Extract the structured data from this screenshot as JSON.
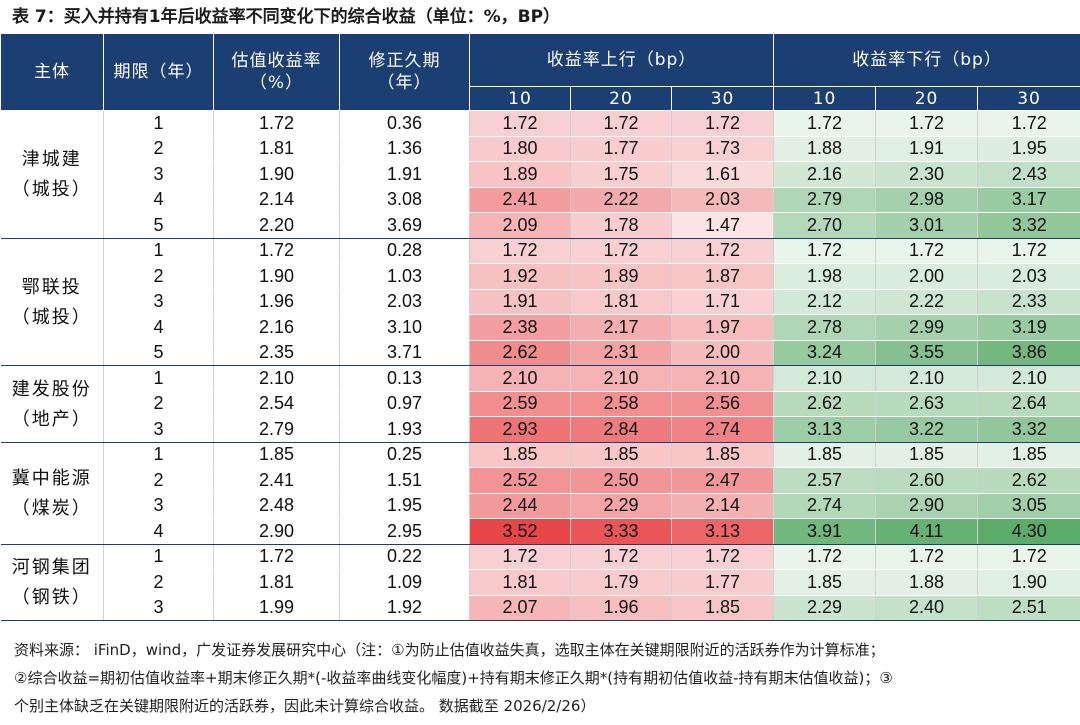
{
  "title": "表 7：买入并持有1年后收益率不同变化下的综合收益（单位：%，BP）",
  "header": {
    "entity": "主体",
    "term": "期限（年）",
    "yield": [
      "估值收益率",
      "（%）"
    ],
    "duration": [
      "修正久期",
      "（年）"
    ],
    "up": "收益率上行（bp）",
    "down": "收益率下行（bp）",
    "bp_levels": [
      "10",
      "20",
      "30"
    ]
  },
  "colors": {
    "header_bg": "#1c3f73",
    "up_base": "#e8474a",
    "down_base": "#4aa35a"
  },
  "groups": [
    {
      "name": "津城建",
      "tag": "（城投）",
      "rows": [
        {
          "term": "1",
          "yield": "1.72",
          "duration": "0.36",
          "up": [
            "1.72",
            "1.72",
            "1.72"
          ],
          "down": [
            "1.72",
            "1.72",
            "1.72"
          ]
        },
        {
          "term": "2",
          "yield": "1.81",
          "duration": "1.36",
          "up": [
            "1.80",
            "1.77",
            "1.73"
          ],
          "down": [
            "1.88",
            "1.91",
            "1.95"
          ]
        },
        {
          "term": "3",
          "yield": "1.90",
          "duration": "1.91",
          "up": [
            "1.89",
            "1.75",
            "1.61"
          ],
          "down": [
            "2.16",
            "2.30",
            "2.43"
          ]
        },
        {
          "term": "4",
          "yield": "2.14",
          "duration": "3.08",
          "up": [
            "2.41",
            "2.22",
            "2.03"
          ],
          "down": [
            "2.79",
            "2.98",
            "3.17"
          ]
        },
        {
          "term": "5",
          "yield": "2.20",
          "duration": "3.69",
          "up": [
            "2.09",
            "1.78",
            "1.47"
          ],
          "down": [
            "2.70",
            "3.01",
            "3.32"
          ]
        }
      ]
    },
    {
      "name": "鄂联投",
      "tag": "（城投）",
      "rows": [
        {
          "term": "1",
          "yield": "1.72",
          "duration": "0.28",
          "up": [
            "1.72",
            "1.72",
            "1.72"
          ],
          "down": [
            "1.72",
            "1.72",
            "1.72"
          ]
        },
        {
          "term": "2",
          "yield": "1.90",
          "duration": "1.03",
          "up": [
            "1.92",
            "1.89",
            "1.87"
          ],
          "down": [
            "1.98",
            "2.00",
            "2.03"
          ]
        },
        {
          "term": "3",
          "yield": "1.96",
          "duration": "2.03",
          "up": [
            "1.91",
            "1.81",
            "1.71"
          ],
          "down": [
            "2.12",
            "2.22",
            "2.33"
          ]
        },
        {
          "term": "4",
          "yield": "2.16",
          "duration": "3.10",
          "up": [
            "2.38",
            "2.17",
            "1.97"
          ],
          "down": [
            "2.78",
            "2.99",
            "3.19"
          ]
        },
        {
          "term": "5",
          "yield": "2.35",
          "duration": "3.71",
          "up": [
            "2.62",
            "2.31",
            "2.00"
          ],
          "down": [
            "3.24",
            "3.55",
            "3.86"
          ]
        }
      ]
    },
    {
      "name": "建发股份",
      "tag": "（地产）",
      "rows": [
        {
          "term": "1",
          "yield": "2.10",
          "duration": "0.13",
          "up": [
            "2.10",
            "2.10",
            "2.10"
          ],
          "down": [
            "2.10",
            "2.10",
            "2.10"
          ]
        },
        {
          "term": "2",
          "yield": "2.54",
          "duration": "0.97",
          "up": [
            "2.59",
            "2.58",
            "2.56"
          ],
          "down": [
            "2.62",
            "2.63",
            "2.64"
          ]
        },
        {
          "term": "3",
          "yield": "2.79",
          "duration": "1.93",
          "up": [
            "2.93",
            "2.84",
            "2.74"
          ],
          "down": [
            "3.13",
            "3.22",
            "3.32"
          ]
        }
      ]
    },
    {
      "name": "冀中能源",
      "tag": "（煤炭）",
      "rows": [
        {
          "term": "1",
          "yield": "1.85",
          "duration": "0.25",
          "up": [
            "1.85",
            "1.85",
            "1.85"
          ],
          "down": [
            "1.85",
            "1.85",
            "1.85"
          ]
        },
        {
          "term": "2",
          "yield": "2.41",
          "duration": "1.51",
          "up": [
            "2.52",
            "2.50",
            "2.47"
          ],
          "down": [
            "2.57",
            "2.60",
            "2.62"
          ]
        },
        {
          "term": "3",
          "yield": "2.48",
          "duration": "1.95",
          "up": [
            "2.44",
            "2.29",
            "2.14"
          ],
          "down": [
            "2.74",
            "2.90",
            "3.05"
          ]
        },
        {
          "term": "4",
          "yield": "2.90",
          "duration": "2.95",
          "up": [
            "3.52",
            "3.33",
            "3.13"
          ],
          "down": [
            "3.91",
            "4.11",
            "4.30"
          ]
        }
      ]
    },
    {
      "name": "河钢集团",
      "tag": "（钢铁）",
      "rows": [
        {
          "term": "1",
          "yield": "1.72",
          "duration": "0.22",
          "up": [
            "1.72",
            "1.72",
            "1.72"
          ],
          "down": [
            "1.72",
            "1.72",
            "1.72"
          ]
        },
        {
          "term": "2",
          "yield": "1.81",
          "duration": "1.09",
          "up": [
            "1.81",
            "1.79",
            "1.77"
          ],
          "down": [
            "1.85",
            "1.88",
            "1.90"
          ]
        },
        {
          "term": "3",
          "yield": "1.99",
          "duration": "1.92",
          "up": [
            "2.07",
            "1.96",
            "1.85"
          ],
          "down": [
            "2.29",
            "2.40",
            "2.51"
          ]
        }
      ]
    }
  ],
  "footer": {
    "line1": "资料来源： iFinD，wind，广发证券发展研究中心（注：①为防止估值收益失真，选取主体在关键期限附近的活跃券作为计算标准；",
    "line2": "②综合收益=期初估值收益率+期末修正久期*(-收益率曲线变化幅度)+持有期末修正久期*(持有期初估值收益-持有期末估值收益)；③",
    "line3": "个别主体缺乏在关键期限附近的活跃券，因此未计算综合收益。 数据截至 2026/2/26）"
  }
}
